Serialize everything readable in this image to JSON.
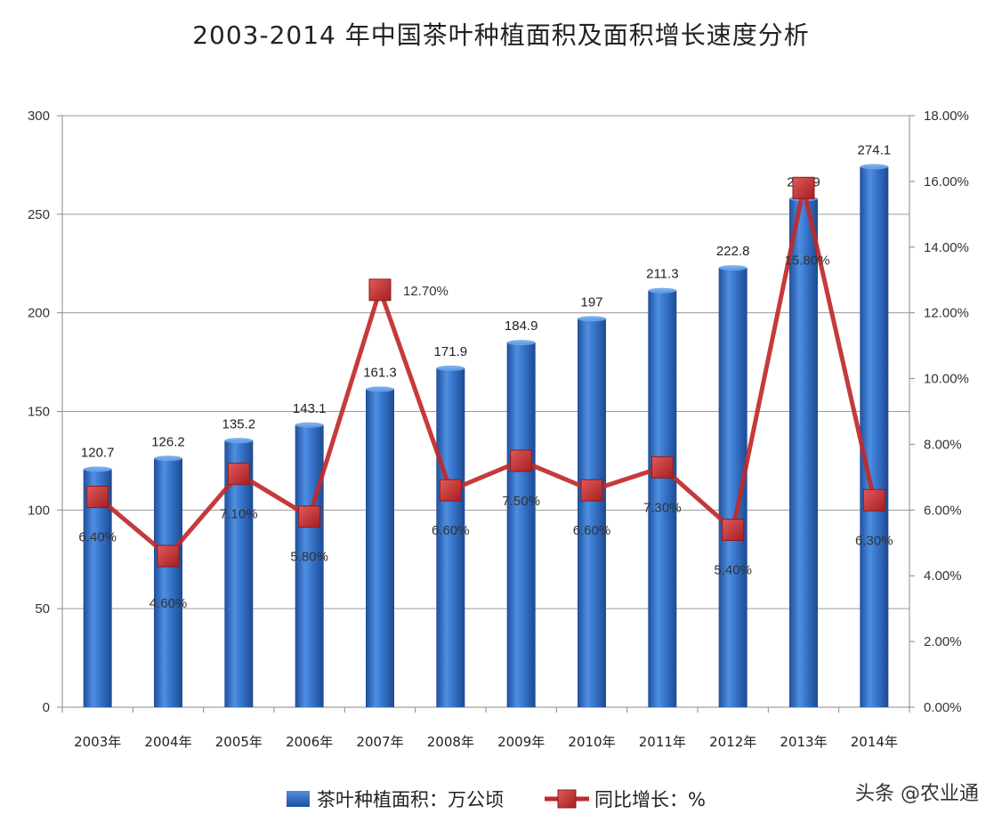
{
  "chart_data": {
    "type": "bar",
    "title": "2003-2014 年中国茶叶种植面积及面积增长速度分析",
    "categories": [
      "2003年",
      "2004年",
      "2005年",
      "2006年",
      "2007年",
      "2008年",
      "2009年",
      "2010年",
      "2011年",
      "2012年",
      "2013年",
      "2014年"
    ],
    "series": [
      {
        "name": "茶叶种植面积：万公顷",
        "type": "bar",
        "axis": "left",
        "values": [
          120.7,
          126.2,
          135.2,
          143.1,
          161.3,
          171.9,
          184.9,
          197,
          211.3,
          222.8,
          257.9,
          274.1
        ],
        "labels": [
          "120.7",
          "126.2",
          "135.2",
          "143.1",
          "161.3",
          "171.9",
          "184.9",
          "197",
          "211.3",
          "222.8",
          "257.9",
          "274.1"
        ],
        "color": "#2e6fc4"
      },
      {
        "name": "同比增长：%",
        "type": "line",
        "axis": "right",
        "values": [
          6.4,
          4.6,
          7.1,
          5.8,
          12.7,
          6.6,
          7.5,
          6.6,
          7.3,
          5.4,
          15.8,
          6.3
        ],
        "labels": [
          "6.40%",
          "4.60%",
          "7.10%",
          "5.80%",
          "12.70%",
          "6.60%",
          "7.50%",
          "6.60%",
          "7.30%",
          "5.40%",
          "15.80%",
          "6.30%"
        ],
        "color": "#c0292b"
      }
    ],
    "y_left": {
      "lim": [
        0,
        300
      ],
      "ticks": [
        "0",
        "50",
        "100",
        "150",
        "200",
        "250",
        "300"
      ]
    },
    "y_right": {
      "lim": [
        0,
        18
      ],
      "ticks": [
        "0.00%",
        "2.00%",
        "4.00%",
        "6.00%",
        "8.00%",
        "10.00%",
        "12.00%",
        "14.00%",
        "16.00%",
        "18.00%"
      ]
    },
    "grid": true,
    "legend_position": "bottom"
  },
  "watermark": "头条 @农业通"
}
